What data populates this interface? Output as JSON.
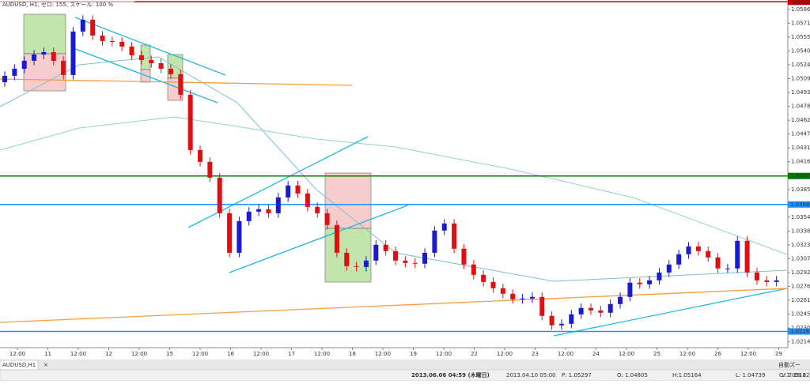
{
  "chart_data": {
    "type": "candlestick",
    "title": "AUDUSD, H1, ゼロ: 155, スケール: 100 %",
    "up_color": "#1a1ad0",
    "down_color": "#e01010",
    "ylim": [
      1.0208,
      1.0597
    ],
    "yticks": [
      {
        "value": 1.05865,
        "label": "1.05865"
      },
      {
        "value": 1.0571,
        "label": "1.05710"
      },
      {
        "value": 1.05555,
        "label": "1.05555"
      },
      {
        "value": 1.054,
        "label": "1.05400"
      },
      {
        "value": 1.05245,
        "label": "1.05245"
      },
      {
        "value": 1.0509,
        "label": "1.05090"
      },
      {
        "value": 1.04935,
        "label": "1.04935"
      },
      {
        "value": 1.0478,
        "label": "1.04780"
      },
      {
        "value": 1.04625,
        "label": "1.04625"
      },
      {
        "value": 1.0447,
        "label": "1.04470"
      },
      {
        "value": 1.04315,
        "label": "1.04315"
      },
      {
        "value": 1.0416,
        "label": "1.04160"
      },
      {
        "value": 1.0385,
        "label": "1.03850"
      },
      {
        "value": 1.0354,
        "label": "1.03540"
      },
      {
        "value": 1.03385,
        "label": "1.03385"
      },
      {
        "value": 1.0323,
        "label": "1.03230"
      },
      {
        "value": 1.03075,
        "label": "1.03075"
      },
      {
        "value": 1.0292,
        "label": "1.02920"
      },
      {
        "value": 1.02765,
        "label": "1.02765"
      },
      {
        "value": 1.0261,
        "label": "1.02610"
      },
      {
        "value": 1.02455,
        "label": "1.02455"
      },
      {
        "value": 1.023,
        "label": "1.02300"
      },
      {
        "value": 1.02145,
        "label": "1.02145"
      }
    ],
    "levels": [
      {
        "value": 1.0595,
        "label": "1.05950",
        "color": "#c00000"
      },
      {
        "value": 1.04001,
        "label": "1.04001",
        "color": "#007a00"
      },
      {
        "value": 1.03682,
        "label": "1.03682",
        "color": "#1e90ff"
      },
      {
        "value": 1.02261,
        "label": "1.02261",
        "color": "#1e90ff"
      }
    ],
    "x_labels": [
      "12:00",
      "11",
      "12:00",
      "12",
      "12:00",
      "15",
      "12:00",
      "16",
      "12:00",
      "17",
      "12:00",
      "18",
      "12:00",
      "19",
      "12:00",
      "22",
      "12:00",
      "23",
      "12:00",
      "24",
      "12:00",
      "25",
      "12:00",
      "26",
      "12:00",
      "29"
    ],
    "open": [
      1.0505,
      1.05122,
      1.05201,
      1.0529,
      1.0536,
      1.05387,
      1.0529,
      1.05131,
      1.05617,
      1.05749,
      1.05572,
      1.05511,
      1.05502,
      1.05449,
      1.05351,
      1.05298,
      1.05263,
      1.05201,
      1.05139,
      1.0491,
      1.04291,
      1.04159,
      1.03982,
      1.03584,
      1.03142,
      1.03496,
      1.03602,
      1.03629,
      1.03584,
      1.03761,
      1.03894,
      1.03805,
      1.03655,
      1.03584,
      1.03452,
      1.03142,
      1.02992,
      1.02983,
      1.03054,
      1.03231,
      1.0316,
      1.03054,
      1.03028,
      1.03019,
      1.03142,
      1.0339,
      1.03469,
      1.03187,
      1.0301,
      1.02895,
      1.02815,
      1.02745,
      1.02683,
      1.02621,
      1.0263,
      1.02648,
      1.02436,
      1.0233,
      1.02347,
      1.02453,
      1.02524,
      1.02497,
      1.02471,
      1.02568,
      1.02648,
      1.02807,
      1.02789,
      1.02833,
      1.02921,
      1.0301,
      1.03125,
      1.03213,
      1.0316,
      1.0309,
      1.02966,
      1.02966,
      1.03275,
      1.02921,
      1.02833,
      1.02815
    ],
    "high": [
      1.05172,
      1.05251,
      1.0534,
      1.0541,
      1.05437,
      1.05437,
      1.0534,
      1.05667,
      1.05799,
      1.05799,
      1.05622,
      1.05561,
      1.05552,
      1.05499,
      1.05401,
      1.05348,
      1.05313,
      1.05251,
      1.05189,
      1.0496,
      1.04341,
      1.04209,
      1.04032,
      1.03634,
      1.03546,
      1.03652,
      1.03679,
      1.03679,
      1.03811,
      1.03944,
      1.03944,
      1.03855,
      1.03705,
      1.03634,
      1.03502,
      1.03192,
      1.03042,
      1.03104,
      1.03281,
      1.03281,
      1.0321,
      1.03104,
      1.03078,
      1.03192,
      1.0344,
      1.03519,
      1.03519,
      1.03237,
      1.0306,
      1.02945,
      1.02865,
      1.02795,
      1.02733,
      1.0268,
      1.02698,
      1.02698,
      1.02486,
      1.02397,
      1.02503,
      1.02574,
      1.02574,
      1.02547,
      1.02618,
      1.02698,
      1.02857,
      1.02857,
      1.02883,
      1.02971,
      1.0306,
      1.03175,
      1.03263,
      1.03263,
      1.0321,
      1.0314,
      1.03016,
      1.03325,
      1.03325,
      1.02971,
      1.02883,
      1.02883
    ],
    "low": [
      1.05,
      1.05072,
      1.05151,
      1.0524,
      1.0531,
      1.0524,
      1.05081,
      1.05081,
      1.05567,
      1.05522,
      1.05461,
      1.05452,
      1.05399,
      1.05301,
      1.05248,
      1.05213,
      1.05151,
      1.05089,
      1.0486,
      1.04241,
      1.04109,
      1.03932,
      1.03534,
      1.03092,
      1.03092,
      1.03446,
      1.03552,
      1.03534,
      1.03534,
      1.03711,
      1.03755,
      1.03605,
      1.03534,
      1.03402,
      1.03092,
      1.02942,
      1.02933,
      1.02933,
      1.03004,
      1.0311,
      1.03004,
      1.02978,
      1.02969,
      1.02969,
      1.03092,
      1.0334,
      1.03137,
      1.0296,
      1.02845,
      1.02765,
      1.02695,
      1.02633,
      1.02571,
      1.02571,
      1.0258,
      1.02386,
      1.0228,
      1.0228,
      1.02297,
      1.02403,
      1.02447,
      1.02421,
      1.02421,
      1.02518,
      1.02598,
      1.02739,
      1.02739,
      1.02783,
      1.02871,
      1.0296,
      1.03075,
      1.0311,
      1.0304,
      1.02916,
      1.02916,
      1.02916,
      1.02871,
      1.02783,
      1.02765,
      1.02765
    ],
    "close": [
      1.05122,
      1.05201,
      1.0529,
      1.0536,
      1.05387,
      1.0529,
      1.05131,
      1.05617,
      1.05749,
      1.05572,
      1.05511,
      1.05502,
      1.05449,
      1.05351,
      1.05298,
      1.05263,
      1.05201,
      1.05139,
      1.0491,
      1.04291,
      1.04159,
      1.03982,
      1.03584,
      1.03142,
      1.03496,
      1.03602,
      1.03629,
      1.03584,
      1.03761,
      1.03894,
      1.03805,
      1.03655,
      1.03584,
      1.03452,
      1.03142,
      1.02992,
      1.02983,
      1.03054,
      1.03231,
      1.0316,
      1.03054,
      1.03028,
      1.03019,
      1.03142,
      1.0339,
      1.03469,
      1.03187,
      1.0301,
      1.02895,
      1.02815,
      1.02745,
      1.02683,
      1.02621,
      1.0263,
      1.02648,
      1.02436,
      1.0233,
      1.02347,
      1.02453,
      1.02524,
      1.02497,
      1.02471,
      1.02568,
      1.02648,
      1.02807,
      1.02789,
      1.02833,
      1.02921,
      1.0301,
      1.03125,
      1.03213,
      1.0316,
      1.0309,
      1.02966,
      1.02966,
      1.03275,
      1.02921,
      1.02833,
      1.02815,
      1.02833
    ]
  },
  "tab": "AUDUSD,H1",
  "toolbar": "自動ズー",
  "status": [
    "2013.06.06 04:59 (木曜日)",
    "2013.04.10 05:00",
    "P: 1.05297",
    "O: 1.04805",
    "H:1.05164",
    "L: 1.04739",
    "C: 1.05122",
    "V: 7.18 8"
  ]
}
